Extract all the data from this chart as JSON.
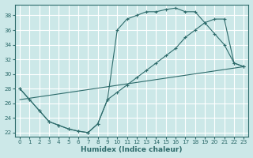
{
  "xlabel": "Humidex (Indice chaleur)",
  "bg_color": "#cce8e8",
  "grid_color": "#ffffff",
  "line_color": "#2d6b6b",
  "xlim": [
    -0.5,
    23.5
  ],
  "ylim": [
    21.5,
    39.5
  ],
  "xticks": [
    0,
    1,
    2,
    3,
    4,
    5,
    6,
    7,
    8,
    9,
    10,
    11,
    12,
    13,
    14,
    15,
    16,
    17,
    18,
    19,
    20,
    21,
    22,
    23
  ],
  "yticks": [
    22,
    24,
    26,
    28,
    30,
    32,
    34,
    36,
    38
  ],
  "curve1_x": [
    0,
    1,
    2,
    3,
    4,
    5,
    6,
    7,
    8,
    9,
    10,
    11,
    12,
    13,
    14,
    15,
    16,
    17,
    18,
    19,
    20,
    21,
    22,
    23
  ],
  "curve1_y": [
    28,
    26.5,
    25,
    23.5,
    23,
    22.5,
    22.2,
    22.0,
    23.2,
    26.5,
    36.0,
    37.5,
    38.0,
    38.5,
    38.5,
    38.8,
    39.0,
    38.5,
    38.5,
    37.0,
    35.5,
    34.0,
    31.5,
    31.0
  ],
  "curve2_x": [
    0,
    1,
    2,
    3,
    4,
    5,
    6,
    7,
    8,
    9,
    10,
    11,
    12,
    13,
    14,
    15,
    16,
    17,
    18,
    19,
    20,
    21,
    22,
    23
  ],
  "curve2_y": [
    28,
    26.5,
    25,
    23.5,
    23,
    22.5,
    22.2,
    22.0,
    23.2,
    26.5,
    27.5,
    28.5,
    29.5,
    30.5,
    31.5,
    32.5,
    33.5,
    35.0,
    36.0,
    37.0,
    37.5,
    37.5,
    31.5,
    31.0
  ]
}
